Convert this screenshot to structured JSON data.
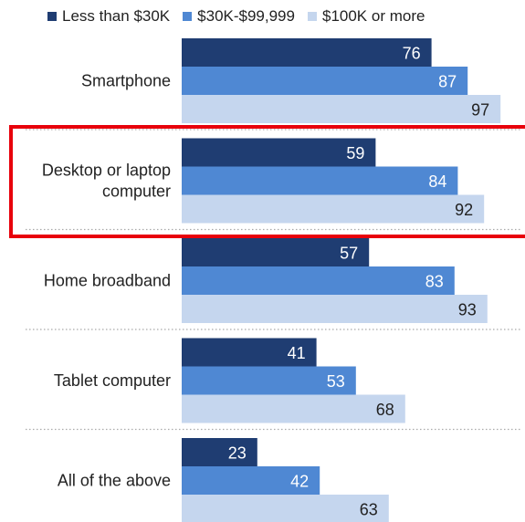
{
  "chart_data": {
    "type": "bar",
    "orientation": "horizontal",
    "categories": [
      "Smartphone",
      "Desktop or laptop computer",
      "Home broadband",
      "Tablet computer",
      "All of the above"
    ],
    "series": [
      {
        "name": "Less than $30K",
        "values": [
          76,
          59,
          57,
          41,
          23
        ]
      },
      {
        "name": "$30K-$99,999",
        "values": [
          87,
          84,
          83,
          53,
          42
        ]
      },
      {
        "name": "$100K or more",
        "values": [
          97,
          92,
          93,
          68,
          63
        ]
      }
    ],
    "legend_position": "top",
    "data_labels": true,
    "xlim": [
      0,
      100
    ],
    "grid": false,
    "highlighted_category": "Desktop or laptop computer"
  },
  "colors": {
    "series": [
      "#1f3d72",
      "#4f88d3",
      "#c5d6ee"
    ],
    "label_light": "#ffffff",
    "label_dark": "#222222",
    "separator": "#aaaaaa",
    "highlight": "#e8000b"
  },
  "category_lines": [
    [
      "Smartphone"
    ],
    [
      "Desktop or laptop",
      "computer"
    ],
    [
      "Home broadband"
    ],
    [
      "Tablet computer"
    ],
    [
      "All of the above"
    ]
  ]
}
